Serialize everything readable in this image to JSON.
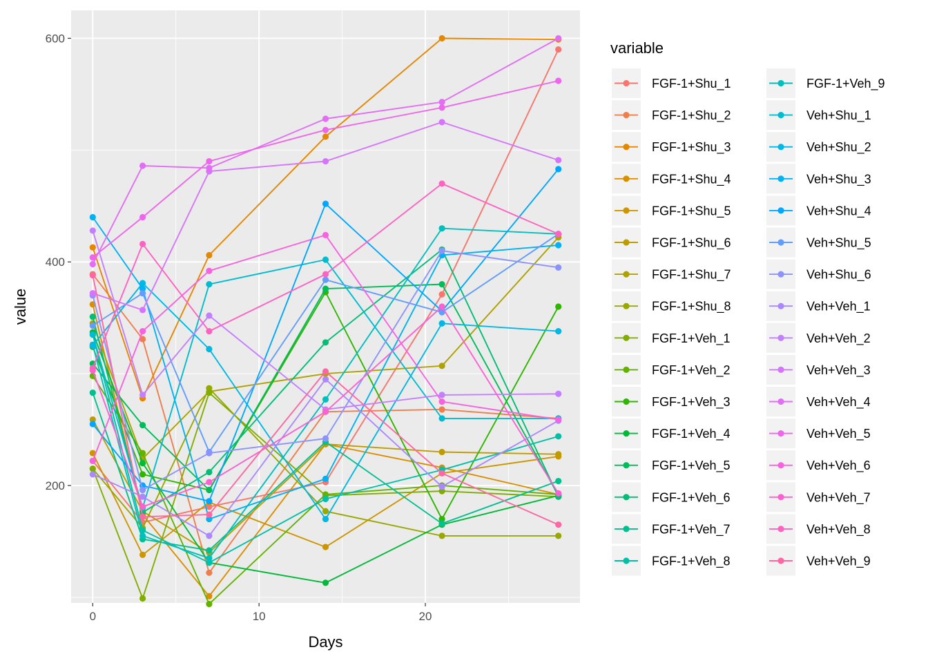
{
  "chart_data": {
    "type": "line",
    "xlabel": "Days",
    "ylabel": "value",
    "x": [
      0,
      3,
      7,
      14,
      21,
      28
    ],
    "xlim": [
      -1.3,
      29.3
    ],
    "ylim": [
      95,
      625
    ],
    "x_ticks": [
      0,
      10,
      20
    ],
    "y_ticks": [
      200,
      400,
      600
    ],
    "grid": true,
    "legend_title": "variable",
    "legend_position": "right",
    "series": [
      {
        "name": "FGF-1+Shu_1",
        "color": "#F8766D",
        "values": [
          222,
          167,
          181,
          203,
          371,
          590
        ]
      },
      {
        "name": "FGF-1+Shu_2",
        "color": "#F07E4C",
        "values": [
          389,
          331,
          122,
          266,
          268,
          260
        ]
      },
      {
        "name": "FGF-1+Shu_3",
        "color": "#E58700",
        "values": [
          413,
          278,
          406,
          512,
          600,
          599
        ]
      },
      {
        "name": "FGF-1+Shu_4",
        "color": "#DA8E00",
        "values": [
          362,
          174,
          101,
          237,
          216,
          192
        ]
      },
      {
        "name": "FGF-1+Shu_5",
        "color": "#CD9600",
        "values": [
          229,
          138,
          185,
          145,
          211,
          226
        ]
      },
      {
        "name": "FGF-1+Shu_6",
        "color": "#BE9C00",
        "values": [
          259,
          177,
          140,
          237,
          230,
          228
        ]
      },
      {
        "name": "FGF-1+Shu_7",
        "color": "#ADA200",
        "values": [
          345,
          224,
          284,
          300,
          307,
          422
        ]
      },
      {
        "name": "FGF-1+Shu_8",
        "color": "#99A800",
        "values": [
          215,
          162,
          287,
          177,
          155,
          155
        ]
      },
      {
        "name": "FGF-1+Veh_1",
        "color": "#81AD00",
        "values": [
          215,
          99,
          283,
          191,
          195,
          190
        ]
      },
      {
        "name": "FGF-1+Veh_2",
        "color": "#64B200",
        "values": [
          298,
          229,
          94,
          192,
          200,
          192
        ]
      },
      {
        "name": "FGF-1+Veh_3",
        "color": "#2EB600",
        "values": [
          324,
          210,
          196,
          373,
          170,
          360
        ]
      },
      {
        "name": "FGF-1+Veh_4",
        "color": "#00BA38",
        "values": [
          337,
          220,
          131,
          113,
          165,
          191
        ]
      },
      {
        "name": "FGF-1+Veh_5",
        "color": "#00BC59",
        "values": [
          309,
          254,
          196,
          376,
          380,
          191
        ]
      },
      {
        "name": "FGF-1+Veh_6",
        "color": "#00BE76",
        "values": [
          351,
          176,
          212,
          328,
          411,
          190
        ]
      },
      {
        "name": "FGF-1+Veh_7",
        "color": "#00C08F",
        "values": [
          283,
          152,
          142,
          239,
          166,
          204
        ]
      },
      {
        "name": "FGF-1+Veh_8",
        "color": "#00C0A7",
        "values": [
          335,
          160,
          131,
          188,
          214,
          244
        ]
      },
      {
        "name": "FGF-1+Veh_9",
        "color": "#00BFBC",
        "values": [
          326,
          155,
          135,
          277,
          430,
          425
        ]
      },
      {
        "name": "Veh+Shu_1",
        "color": "#00BCD0",
        "values": [
          335,
          180,
          380,
          402,
          260,
          260
        ]
      },
      {
        "name": "Veh+Shu_2",
        "color": "#00B8E3",
        "values": [
          325,
          381,
          322,
          170,
          345,
          338
        ]
      },
      {
        "name": "Veh+Shu_3",
        "color": "#00B2F3",
        "values": [
          440,
          376,
          170,
          206,
          406,
          415
        ]
      },
      {
        "name": "Veh+Shu_4",
        "color": "#00A7FF",
        "values": [
          255,
          200,
          186,
          452,
          356,
          483
        ]
      },
      {
        "name": "Veh+Shu_5",
        "color": "#619CFF",
        "values": [
          343,
          372,
          230,
          384,
          355,
          425
        ]
      },
      {
        "name": "Veh+Shu_6",
        "color": "#8B93FF",
        "values": [
          370,
          196,
          229,
          242,
          410,
          395
        ]
      },
      {
        "name": "Veh+Veh_1",
        "color": "#AB88FF",
        "values": [
          210,
          190,
          155,
          295,
          199,
          258
        ]
      },
      {
        "name": "Veh+Veh_2",
        "color": "#C37FFF",
        "values": [
          428,
          281,
          352,
          268,
          281,
          282
        ]
      },
      {
        "name": "Veh+Veh_3",
        "color": "#D575FE",
        "values": [
          372,
          357,
          481,
          490,
          525,
          491
        ]
      },
      {
        "name": "Veh+Veh_4",
        "color": "#E36EF6",
        "values": [
          398,
          486,
          484,
          528,
          543,
          600
        ]
      },
      {
        "name": "Veh+Veh_5",
        "color": "#EE67EB",
        "values": [
          404,
          440,
          490,
          518,
          538,
          562
        ]
      },
      {
        "name": "Veh+Veh_6",
        "color": "#F763DF",
        "values": [
          222,
          338,
          392,
          424,
          275,
          259
        ]
      },
      {
        "name": "Veh+Veh_7",
        "color": "#FC61D1",
        "values": [
          303,
          181,
          203,
          266,
          360,
          193
        ]
      },
      {
        "name": "Veh+Veh_8",
        "color": "#FF62C1",
        "values": [
          305,
          416,
          338,
          389,
          470,
          425
        ]
      },
      {
        "name": "Veh+Veh_9",
        "color": "#FF67A4",
        "values": [
          388,
          172,
          174,
          302,
          211,
          165
        ]
      }
    ]
  }
}
